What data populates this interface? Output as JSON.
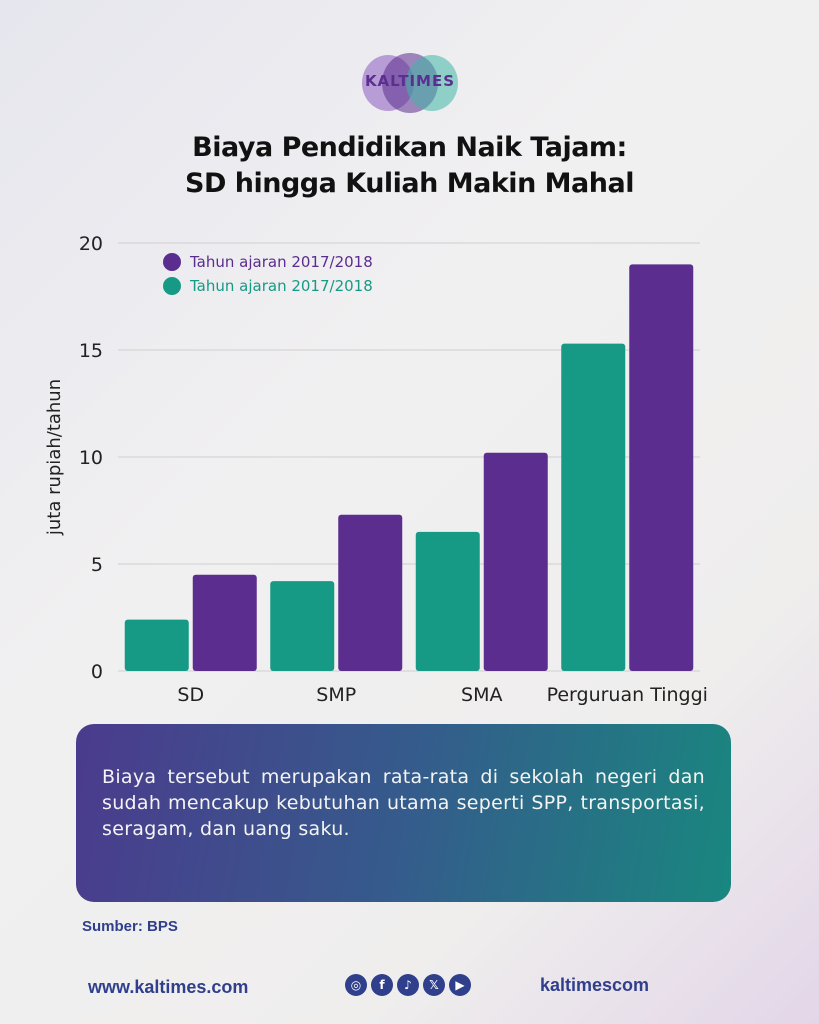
{
  "brand": {
    "logo_text": "KALTIMES"
  },
  "title_lines": [
    "Biaya Pendidikan Naik Tajam:",
    "SD hingga Kuliah Makin Mahal"
  ],
  "note": "Biaya tersebut merupakan rata-rata di sekolah negeri dan sudah mencakup kebutuhan utama seperti SPP, transportasi, seragam, dan uang saku.",
  "source": "Sumber: BPS",
  "footer": {
    "website": "www.kaltimes.com",
    "handle": "kaltimescom"
  },
  "socials": [
    {
      "icon": "instagram-icon",
      "glyph": "◎"
    },
    {
      "icon": "facebook-icon",
      "glyph": "f"
    },
    {
      "icon": "tiktok-icon",
      "glyph": "♪"
    },
    {
      "icon": "x-icon",
      "glyph": "𝕏"
    },
    {
      "icon": "youtube-icon",
      "glyph": "▶"
    }
  ],
  "colors": {
    "purple": "#5b2d8e",
    "teal": "#169a86",
    "accent_text": "#2f3f8c"
  },
  "chart_data": {
    "type": "bar",
    "title": "Biaya Pendidikan Naik Tajam: SD hingga Kuliah Makin Mahal",
    "xlabel": "",
    "ylabel": "juta rupiah/tahun",
    "categories": [
      "SD",
      "SMP",
      "SMA",
      "Perguruan Tinggi"
    ],
    "series": [
      {
        "name": "Tahun ajaran 2017/2018",
        "color": "#169a86",
        "values": [
          2.4,
          4.2,
          6.5,
          15.3
        ]
      },
      {
        "name": "Tahun ajaran 2017/2018",
        "color": "#5b2d8e",
        "values": [
          4.5,
          7.3,
          10.2,
          19.0
        ]
      }
    ],
    "legend_labels": [
      {
        "name": "Tahun ajaran 2017/2018",
        "color": "#5b2d8e"
      },
      {
        "name": "Tahun ajaran 2017/2018",
        "color": "#169a86"
      }
    ],
    "ylim": [
      0,
      20
    ],
    "yticks": [
      0,
      5,
      10,
      15,
      20
    ],
    "grid": true,
    "legend_position": "top-left"
  }
}
